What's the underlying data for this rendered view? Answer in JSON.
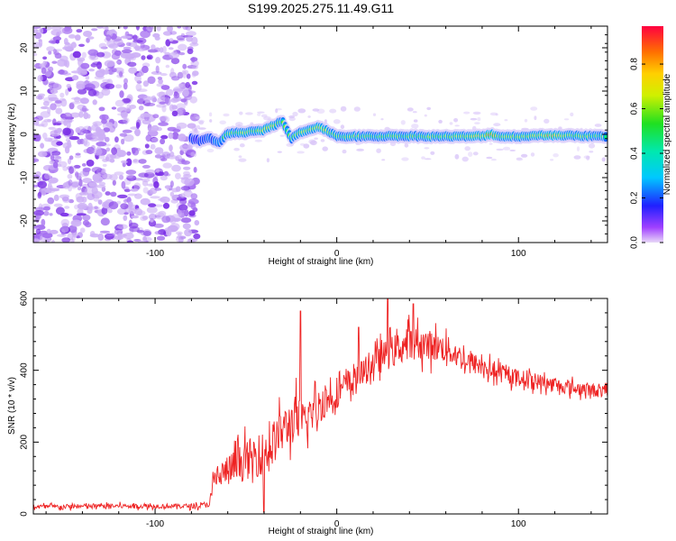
{
  "title": "S199.2025.275.11.49.G11",
  "chart_data": [
    {
      "type": "heatmap",
      "name": "spectrogram",
      "xlabel": "Height of straight line (km)",
      "ylabel": "Frequency (Hz)",
      "xlim": [
        -167,
        149
      ],
      "ylim": [
        -25,
        25
      ],
      "xticks": [
        -100,
        0,
        100
      ],
      "yticks": [
        -20,
        -10,
        0,
        10,
        20
      ],
      "noise_region": {
        "x": [
          -167,
          -77
        ],
        "y": [
          -25,
          25
        ]
      },
      "ridge": {
        "x": [
          -80,
          -75,
          -70,
          -65,
          -60,
          -55,
          -50,
          -45,
          -40,
          -35,
          -30,
          -25,
          -20,
          -15,
          -10,
          -5,
          0,
          10,
          20,
          30,
          40,
          50,
          60,
          70,
          80,
          85,
          90,
          100,
          110,
          120,
          130,
          140,
          149
        ],
        "freq": [
          -1.0,
          -1.5,
          -0.8,
          -2.0,
          0.2,
          0.3,
          0.5,
          0.8,
          1.0,
          2.0,
          3.0,
          -1.0,
          0.5,
          1.0,
          1.8,
          0.8,
          -0.5,
          -0.5,
          -0.5,
          -0.4,
          -0.4,
          -0.5,
          -0.5,
          -0.5,
          -0.4,
          0.0,
          -0.5,
          -0.5,
          -0.3,
          -0.2,
          -0.3,
          -0.4,
          -0.5
        ],
        "amplitude": [
          0.25,
          0.3,
          0.35,
          0.4,
          0.55,
          0.6,
          0.65,
          0.6,
          0.7,
          0.75,
          0.6,
          0.5,
          0.6,
          0.65,
          0.75,
          0.65,
          0.55,
          0.6,
          0.55,
          0.6,
          0.55,
          0.6,
          0.6,
          0.65,
          0.7,
          0.9,
          0.6,
          0.6,
          0.7,
          0.8,
          0.65,
          0.6,
          0.55
        ]
      },
      "colorbar": {
        "label": "Normalized spectral amplitude",
        "range": [
          0,
          0.97
        ],
        "ticks": [
          "0.0",
          "0.2",
          "0.4",
          "0.6",
          "0.8"
        ],
        "tick_values": [
          0,
          0.2,
          0.4,
          0.6,
          0.8
        ]
      }
    },
    {
      "type": "line",
      "name": "snr",
      "xlabel": "Height of straight line (km)",
      "ylabel": "SNR (10 * v/v)",
      "xlim": [
        -167,
        149
      ],
      "ylim": [
        0,
        600
      ],
      "xticks": [
        -100,
        0,
        100
      ],
      "yticks": [
        0,
        200,
        400,
        600
      ],
      "series": [
        {
          "name": "SNR",
          "color": "#ee2222",
          "x": [
            -167,
            -150,
            -130,
            -110,
            -90,
            -75,
            -70,
            -67,
            -60,
            -50,
            -40,
            -30,
            -22,
            -20,
            -10,
            0,
            10,
            20,
            30,
            40,
            50,
            60,
            70,
            80,
            90,
            100,
            110,
            120,
            130,
            140,
            149
          ],
          "mean": [
            20,
            20,
            22,
            22,
            22,
            22,
            30,
            100,
            120,
            150,
            170,
            230,
            270,
            250,
            300,
            340,
            370,
            420,
            450,
            480,
            470,
            460,
            430,
            410,
            390,
            380,
            370,
            360,
            350,
            345,
            340
          ],
          "amp": [
            12,
            12,
            12,
            12,
            12,
            12,
            20,
            70,
            80,
            100,
            110,
            110,
            120,
            110,
            90,
            80,
            70,
            70,
            80,
            80,
            80,
            70,
            60,
            50,
            45,
            40,
            40,
            35,
            35,
            35,
            30
          ],
          "spikes": [
            {
              "x": -20,
              "y": 565
            },
            {
              "x": 28,
              "y": 598
            },
            {
              "x": 42,
              "y": 585
            },
            {
              "x": 12,
              "y": 520
            },
            {
              "x": -40,
              "y": 5
            }
          ]
        }
      ]
    }
  ]
}
